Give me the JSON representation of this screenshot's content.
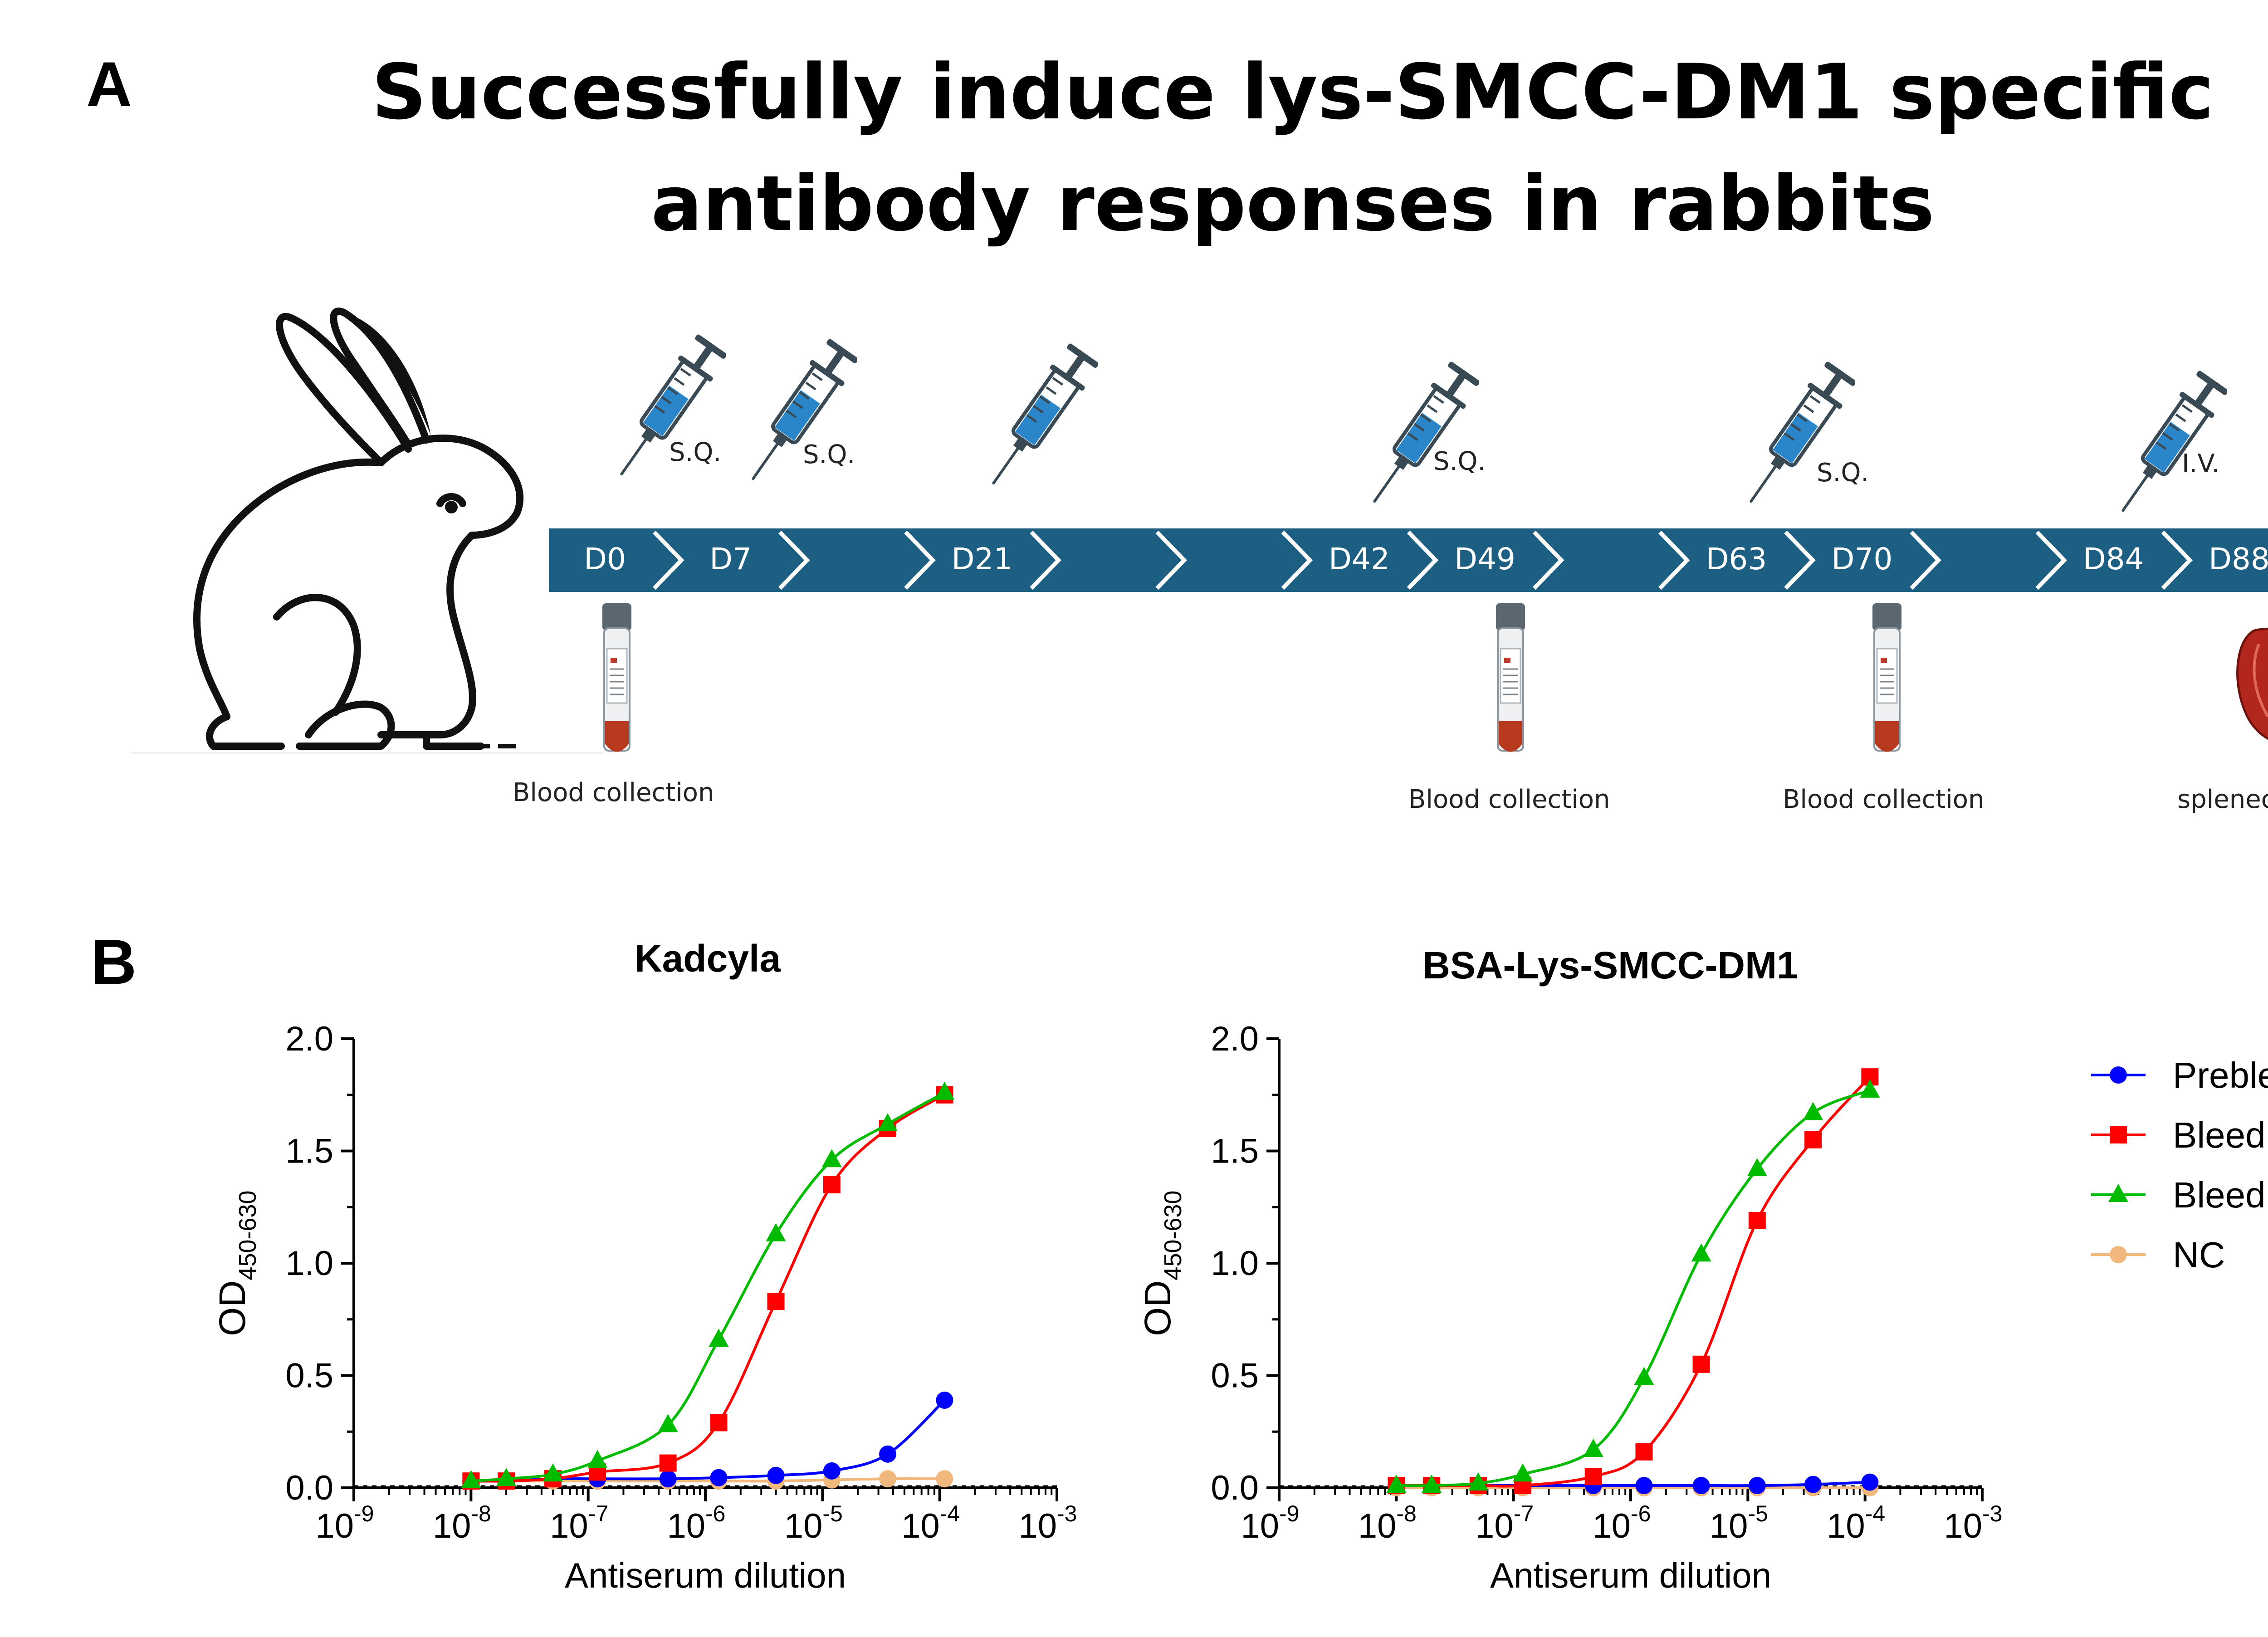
{
  "panel_a": {
    "letter": "A",
    "title_line1": "Successfully induce lys-SMCC-DM1 specific",
    "title_line2": "antibody responses in rabbits",
    "timeline_days": [
      "D0",
      "D7",
      "",
      "D21",
      "",
      "",
      "D42",
      "D49",
      "",
      "D63",
      "D70",
      "",
      "D84",
      "D88"
    ],
    "injections": [
      {
        "route": "S.Q."
      },
      {
        "route": "S.Q."
      },
      {
        "route": ""
      },
      {
        "route": "S.Q."
      },
      {
        "route": "S.Q."
      },
      {
        "route": "I.V."
      }
    ],
    "events": [
      {
        "label": "Blood collection",
        "icon": "blood-tube-icon"
      },
      {
        "label": "Blood collection",
        "icon": "blood-tube-icon"
      },
      {
        "label": "Blood collection",
        "icon": "blood-tube-icon"
      },
      {
        "label": "splenectomy",
        "icon": "spleen-icon"
      }
    ],
    "colors": {
      "timeline": "#1d5f82",
      "syringe": "#2a86c8",
      "blood": "#b83a1e"
    }
  },
  "panel_b": {
    "letter": "B",
    "legend": [
      {
        "name": "Prebleed",
        "color": "#0000ff",
        "marker": "circle"
      },
      {
        "name": "Bleed II",
        "color": "#ff0000",
        "marker": "square"
      },
      {
        "name": "Bleed III",
        "color": "#00bb00",
        "marker": "triangle"
      },
      {
        "name": "NC",
        "color": "#f0b87c",
        "marker": "circle"
      }
    ]
  },
  "chart_data": [
    {
      "type": "scatter",
      "title": "Kadcyla",
      "xlabel": "Antiserum dilution",
      "ylabel_main": "OD",
      "ylabel_sub": "450-630",
      "x_scale": "log",
      "xlim": [
        1e-09,
        0.001
      ],
      "ylim": [
        0,
        2.0
      ],
      "y_ticks": [
        "0.0",
        "0.5",
        "1.0",
        "1.5",
        "2.0"
      ],
      "x_ticks": [
        {
          "base": "10",
          "exp": "-9"
        },
        {
          "base": "10",
          "exp": "-8"
        },
        {
          "base": "10",
          "exp": "-7"
        },
        {
          "base": "10",
          "exp": "-6"
        },
        {
          "base": "10",
          "exp": "-5"
        },
        {
          "base": "10",
          "exp": "-4"
        },
        {
          "base": "10",
          "exp": "-3"
        }
      ],
      "x": [
        1e-08,
        2e-08,
        5e-08,
        1.2e-07,
        4.8e-07,
        1.3e-06,
        4e-06,
        1.2e-05,
        3.6e-05,
        0.00011
      ],
      "series": [
        {
          "name": "Prebleed",
          "values": [
            0.03,
            0.03,
            0.04,
            0.04,
            0.04,
            0.045,
            0.055,
            0.075,
            0.15,
            0.39
          ]
        },
        {
          "name": "Bleed II",
          "values": [
            0.03,
            0.03,
            0.04,
            0.07,
            0.11,
            0.29,
            0.83,
            1.35,
            1.6,
            1.75
          ]
        },
        {
          "name": "Bleed III",
          "values": [
            0.03,
            0.04,
            0.06,
            0.12,
            0.28,
            0.66,
            1.13,
            1.46,
            1.62,
            1.76
          ]
        },
        {
          "name": "NC",
          "values": [
            0.03,
            0.03,
            0.03,
            0.03,
            0.03,
            0.03,
            0.03,
            0.035,
            0.04,
            0.04
          ]
        }
      ]
    },
    {
      "type": "scatter",
      "title": "BSA-Lys-SMCC-DM1",
      "xlabel": "Antiserum dilution",
      "ylabel_main": "OD",
      "ylabel_sub": "450-630",
      "x_scale": "log",
      "xlim": [
        1e-09,
        0.001
      ],
      "ylim": [
        0,
        2.0
      ],
      "y_ticks": [
        "0.0",
        "0.5",
        "1.0",
        "1.5",
        "2.0"
      ],
      "x_ticks": [
        {
          "base": "10",
          "exp": "-9"
        },
        {
          "base": "10",
          "exp": "-8"
        },
        {
          "base": "10",
          "exp": "-7"
        },
        {
          "base": "10",
          "exp": "-6"
        },
        {
          "base": "10",
          "exp": "-5"
        },
        {
          "base": "10",
          "exp": "-4"
        },
        {
          "base": "10",
          "exp": "-3"
        }
      ],
      "x": [
        1e-08,
        2e-08,
        5e-08,
        1.2e-07,
        4.8e-07,
        1.3e-06,
        4e-06,
        1.2e-05,
        3.6e-05,
        0.00011
      ],
      "series": [
        {
          "name": "Prebleed",
          "values": [
            0.01,
            0.01,
            0.01,
            0.01,
            0.01,
            0.01,
            0.01,
            0.01,
            0.015,
            0.025
          ]
        },
        {
          "name": "Bleed II",
          "values": [
            0.01,
            0.01,
            0.01,
            0.01,
            0.05,
            0.16,
            0.55,
            1.19,
            1.55,
            1.83
          ]
        },
        {
          "name": "Bleed III",
          "values": [
            0.01,
            0.01,
            0.02,
            0.06,
            0.17,
            0.49,
            1.04,
            1.42,
            1.67,
            1.77
          ]
        },
        {
          "name": "NC",
          "values": [
            0.0,
            0.0,
            0.0,
            0.0,
            0.0,
            0.0,
            0.0,
            0.0,
            0.0,
            0.0
          ]
        }
      ]
    }
  ]
}
